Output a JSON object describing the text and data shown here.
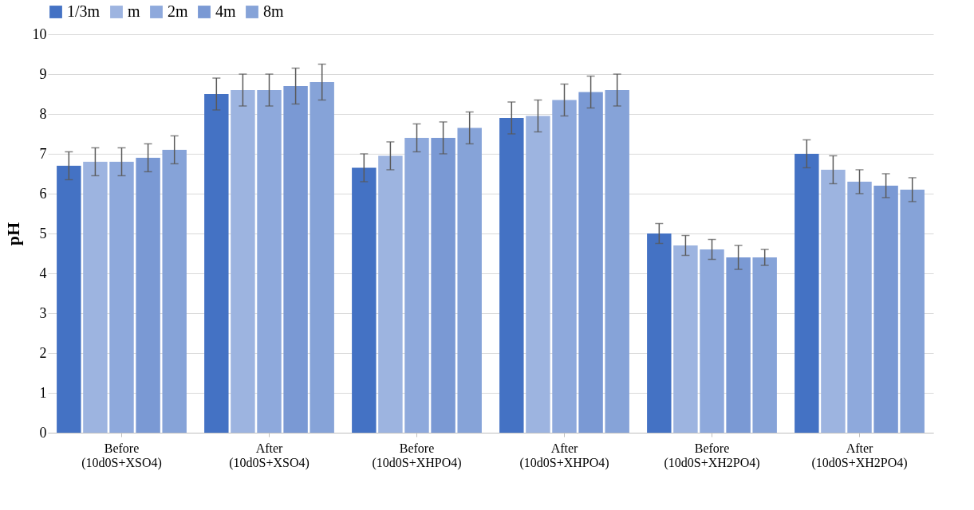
{
  "chart_data": {
    "type": "bar",
    "ylabel": "pH",
    "categories": [
      "Before\n(10d0S+XSO4)",
      "After\n(10d0S+XSO4)",
      "Before\n(10d0S+XHPO4)",
      "After\n(10d0S+XHPO4)",
      "Before\n(10d0S+XH2PO4)",
      "After\n(10d0S+XH2PO4)"
    ],
    "series": [
      {
        "name": "1/3m",
        "color": "#4472c4",
        "values": [
          6.7,
          8.5,
          6.65,
          7.9,
          5.0,
          7.0
        ],
        "errors": [
          0.35,
          0.4,
          0.35,
          0.4,
          0.25,
          0.35
        ]
      },
      {
        "name": "m",
        "color": "#9db4e0",
        "values": [
          6.8,
          8.6,
          6.95,
          7.95,
          4.7,
          6.6
        ],
        "errors": [
          0.35,
          0.4,
          0.35,
          0.4,
          0.25,
          0.35
        ]
      },
      {
        "name": "2m",
        "color": "#8ea9dc",
        "values": [
          6.8,
          8.6,
          7.4,
          8.35,
          4.6,
          6.3
        ],
        "errors": [
          0.35,
          0.4,
          0.35,
          0.4,
          0.25,
          0.3
        ]
      },
      {
        "name": "4m",
        "color": "#7a99d4",
        "values": [
          6.9,
          8.7,
          7.4,
          8.55,
          4.4,
          6.2
        ],
        "errors": [
          0.35,
          0.45,
          0.4,
          0.4,
          0.3,
          0.3
        ]
      },
      {
        "name": "8m",
        "color": "#86a3d8",
        "values": [
          7.1,
          8.8,
          7.65,
          8.6,
          4.4,
          6.1
        ],
        "errors": [
          0.35,
          0.45,
          0.4,
          0.4,
          0.2,
          0.3
        ]
      }
    ],
    "ylim": [
      0,
      10
    ],
    "yticks": [
      0,
      1,
      2,
      3,
      4,
      5,
      6,
      7,
      8,
      9,
      10
    ],
    "grid": "y",
    "legend": "top"
  }
}
